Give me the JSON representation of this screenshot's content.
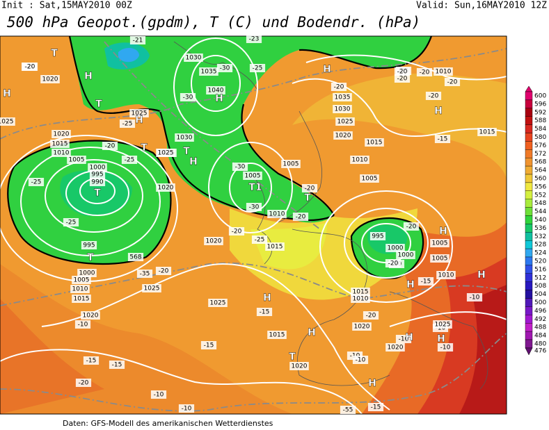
{
  "header": {
    "init": "Init : Sat,15MAY2010 00Z",
    "valid": "Valid: Sun,16MAY2010 12Z",
    "title": "500 hPa Geopot.(gpdm), T (C) und Bodendr. (hPa)"
  },
  "footer": "Daten: GFS-Modell des amerikanischen Wetterdienstes",
  "colorbar": {
    "levels": [
      600,
      596,
      592,
      588,
      584,
      580,
      576,
      572,
      568,
      564,
      560,
      556,
      552,
      548,
      544,
      540,
      536,
      532,
      528,
      524,
      520,
      516,
      512,
      508,
      504,
      500,
      496,
      492,
      488,
      484,
      480,
      476
    ],
    "colors": [
      "#e0006e",
      "#c8003c",
      "#a80010",
      "#c01010",
      "#d82820",
      "#e84420",
      "#f06020",
      "#f07a28",
      "#f09430",
      "#f0ac34",
      "#f0c838",
      "#f0e840",
      "#d4f040",
      "#a8ec3c",
      "#6ee038",
      "#30d43c",
      "#18c868",
      "#10c0a0",
      "#10c8d8",
      "#30a8f0",
      "#2c78f0",
      "#3050e8",
      "#3030d8",
      "#2818c0",
      "#2410a0",
      "#5018b8",
      "#7818c8",
      "#a018d0",
      "#c020c8",
      "#a018b0",
      "#801890",
      "#601070"
    ]
  },
  "map_labels": [
    "T",
    "H",
    "1020",
    "-21",
    "H",
    "1025",
    "T",
    "1025",
    "H",
    "-25",
    "1020",
    "1015",
    "1010",
    "1005",
    "-25",
    "T",
    "-20",
    "1000",
    "995",
    "990",
    "T",
    "-25",
    "-25",
    "995",
    "T",
    "568",
    "1000",
    "1005",
    "1010",
    "1015",
    "1020",
    "-20",
    "1025",
    "1030",
    "1035",
    "1040",
    "H",
    "-30",
    "-30",
    "1030",
    "1025",
    "T",
    "H",
    "1020",
    "-30",
    "1005",
    "T1",
    "-30",
    "1010",
    "-20",
    "-25",
    "1015",
    "1020",
    "-20",
    "T",
    "1005",
    "-20",
    "-25",
    "H",
    "-20",
    "1035",
    "1030",
    "1025",
    "1020",
    "1015",
    "1010",
    "1005",
    "-25",
    "-20",
    "1010",
    "-20",
    "-20",
    "H",
    "-15",
    "1015",
    "-20",
    "H",
    "1005",
    "995",
    "1000",
    "1000",
    "-20",
    "-20",
    "-15",
    "1005",
    "1010",
    "H",
    "H",
    "-10",
    "1015",
    "1010",
    "-10",
    "H",
    "1025",
    "-15",
    "1025",
    "H",
    "H",
    "1015",
    "-20",
    "1020",
    "1020",
    "H",
    "-10",
    "-10",
    "-10",
    "-15",
    "1020",
    "-15",
    "T",
    "-10",
    "-10",
    "H",
    "1025",
    "-15",
    "-10",
    "-10",
    "-20",
    "-15",
    "-55",
    "-35",
    "-21",
    "-23",
    "-20",
    "-20",
    "-20"
  ]
}
